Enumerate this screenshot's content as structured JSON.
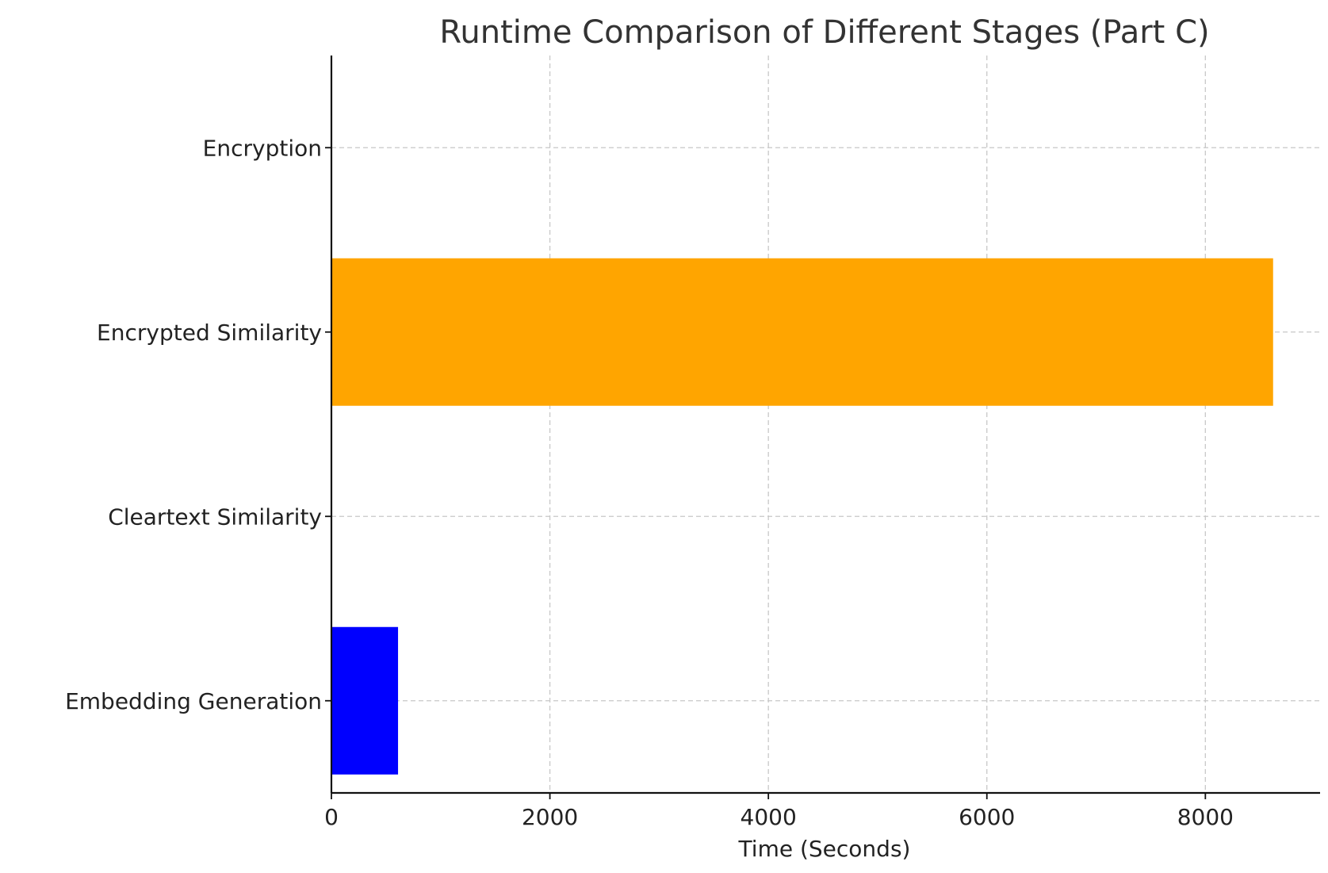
{
  "chart_data": {
    "type": "bar",
    "orientation": "horizontal",
    "title": "Runtime Comparison of Different Stages (Part C)",
    "xlabel": "Time (Seconds)",
    "ylabel": "",
    "categories": [
      "Embedding Generation",
      "Cleartext Similarity",
      "Encrypted Similarity",
      "Encryption"
    ],
    "values": [
      610,
      2,
      8620,
      2
    ],
    "colors": [
      "#0000ff",
      "#008000",
      "#ffa500",
      "#ff0000"
    ],
    "xlim": [
      0,
      9050
    ],
    "xticks": [
      0,
      2000,
      4000,
      6000,
      8000
    ],
    "xtick_labels": [
      "0",
      "2000",
      "4000",
      "6000",
      "8000"
    ],
    "grid": true,
    "legend": "none"
  }
}
